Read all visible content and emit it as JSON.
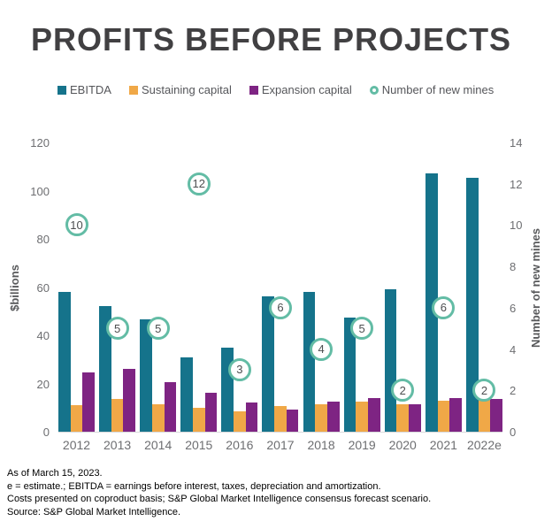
{
  "title": "PROFITS BEFORE PROJECTS",
  "colors": {
    "ebitda": "#15738b",
    "sustaining": "#f0a847",
    "expansion": "#7e2483",
    "mines_ring": "#63bca5",
    "title_text": "#414042",
    "axis_text": "#6d6e71"
  },
  "legend": [
    {
      "label": "EBITDA",
      "marker": "square",
      "color": "#15738b"
    },
    {
      "label": "Sustaining capital",
      "marker": "square",
      "color": "#f0a847"
    },
    {
      "label": "Expansion capital",
      "marker": "square",
      "color": "#7e2483"
    },
    {
      "label": "Number of new mines",
      "marker": "ring",
      "color": "#63bca5"
    }
  ],
  "chart_data": {
    "type": "bar",
    "categories": [
      "2012",
      "2013",
      "2014",
      "2015",
      "2016",
      "2017",
      "2018",
      "2019",
      "2020",
      "2021",
      "2022e"
    ],
    "series": [
      {
        "name": "EBITDA",
        "color": "#15738b",
        "axis": "left",
        "values": [
          58,
          52,
          46.5,
          31,
          35,
          56,
          58,
          47.5,
          59,
          107,
          105.5
        ]
      },
      {
        "name": "Sustaining capital",
        "color": "#f0a847",
        "axis": "left",
        "values": [
          11,
          13.5,
          11.5,
          10,
          8.5,
          10.5,
          11.5,
          12.5,
          11.5,
          13,
          14.5
        ]
      },
      {
        "name": "Expansion capital",
        "color": "#7e2483",
        "axis": "left",
        "values": [
          24.5,
          26,
          20.5,
          16,
          12,
          9,
          12.5,
          14,
          11.5,
          14,
          13.5
        ]
      }
    ],
    "markers": {
      "name": "Number of new mines",
      "color": "#63bca5",
      "axis": "right",
      "values": [
        10,
        5,
        5,
        12,
        3,
        6,
        4,
        5,
        2,
        6,
        2
      ]
    },
    "left_axis": {
      "label": "$billions",
      "ticks": [
        0,
        20,
        40,
        60,
        80,
        100,
        120
      ],
      "min": 0,
      "max": 120
    },
    "right_axis": {
      "label": "Number of new mines",
      "ticks": [
        0,
        2,
        4,
        6,
        8,
        10,
        12,
        14
      ],
      "min": 0,
      "max": 14
    },
    "grid": false,
    "legend_position": "top"
  },
  "footnotes": [
    "As of March 15, 2023.",
    "e = estimate.; EBITDA = earnings before interest, taxes, depreciation and amortization.",
    "Costs presented on coproduct basis; S&P Global Market Intelligence consensus forecast scenario.",
    "Source: S&P Global Market Intelligence."
  ]
}
